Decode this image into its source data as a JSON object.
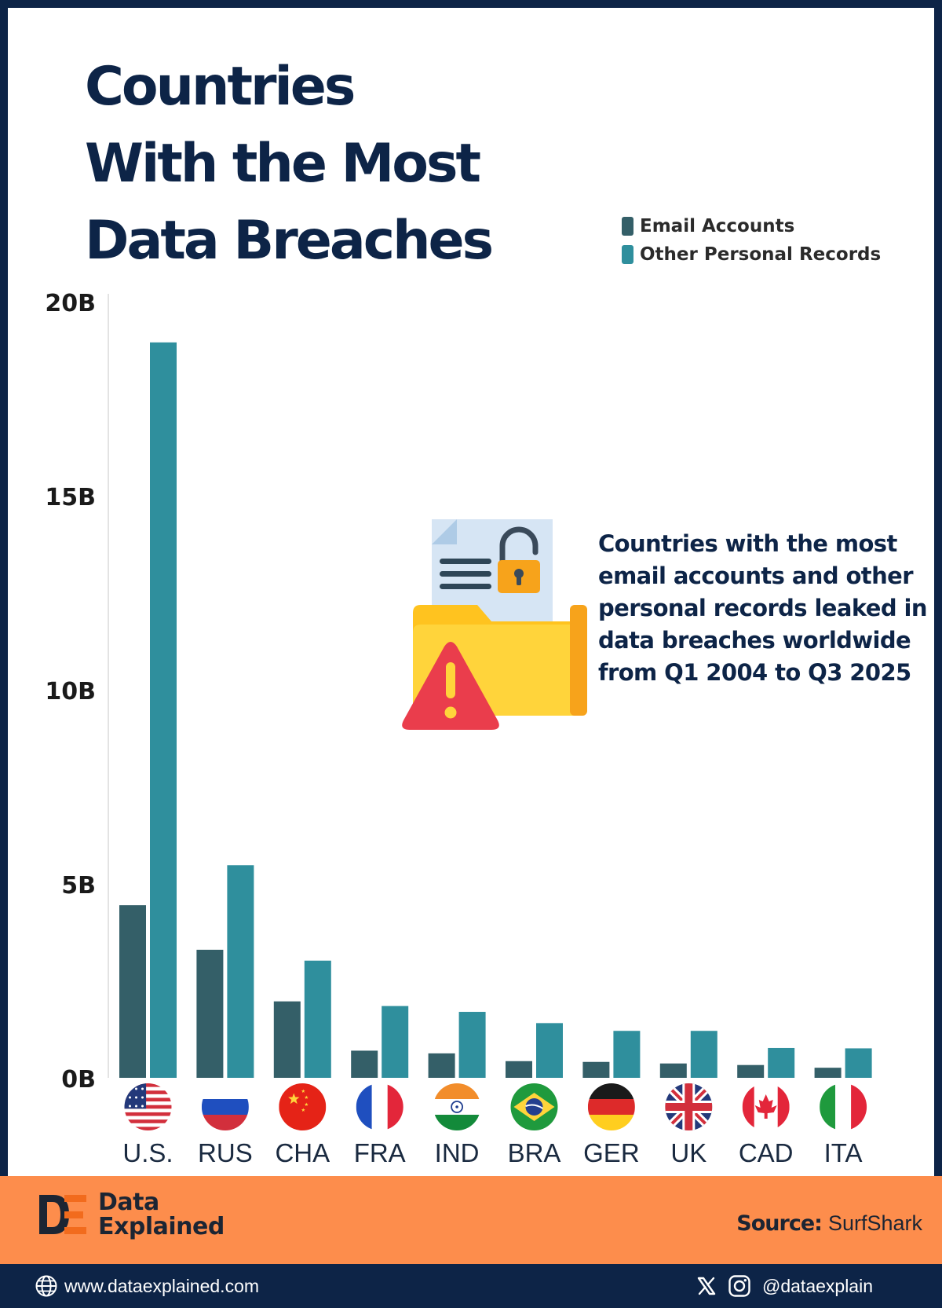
{
  "title_lines": [
    "Countries",
    "With the Most",
    "Data Breaches"
  ],
  "description": "Countries with the most email accounts and other personal records leaked in data breaches worldwide from Q1 2004 to Q3 2025",
  "colors": {
    "email": "#345f68",
    "other": "#2f8f9d",
    "title": "#0d2447",
    "band": "#fd8d4c",
    "frame": "#0d2447"
  },
  "chart_data": {
    "type": "bar",
    "categories": [
      "U.S.",
      "RUS",
      "CHA",
      "FRA",
      "IND",
      "BRA",
      "GER",
      "UK",
      "CAD",
      "ITA"
    ],
    "series": [
      {
        "name": "Email Accounts",
        "values": [
          4.45,
          3.3,
          1.97,
          0.7,
          0.63,
          0.43,
          0.41,
          0.37,
          0.33,
          0.26
        ]
      },
      {
        "name": "Other Personal Records",
        "values": [
          18.95,
          5.48,
          3.02,
          1.85,
          1.7,
          1.41,
          1.21,
          1.21,
          0.77,
          0.76
        ]
      }
    ],
    "ylim": [
      0,
      20
    ],
    "yticks": [
      "0B",
      "5B",
      "10B",
      "15B",
      "20B"
    ],
    "legend_position": "top-right",
    "grid": false
  },
  "flags": [
    "us-flag-icon",
    "russia-flag-icon",
    "china-flag-icon",
    "france-flag-icon",
    "india-flag-icon",
    "brazil-flag-icon",
    "germany-flag-icon",
    "uk-flag-icon",
    "canada-flag-icon",
    "italy-flag-icon"
  ],
  "footer": {
    "brand_line1": "Data",
    "brand_line2": "Explained",
    "source_label": "Source:",
    "source_value": "SurfShark",
    "website": "www.dataexplained.com",
    "handle": "@dataexplain"
  }
}
